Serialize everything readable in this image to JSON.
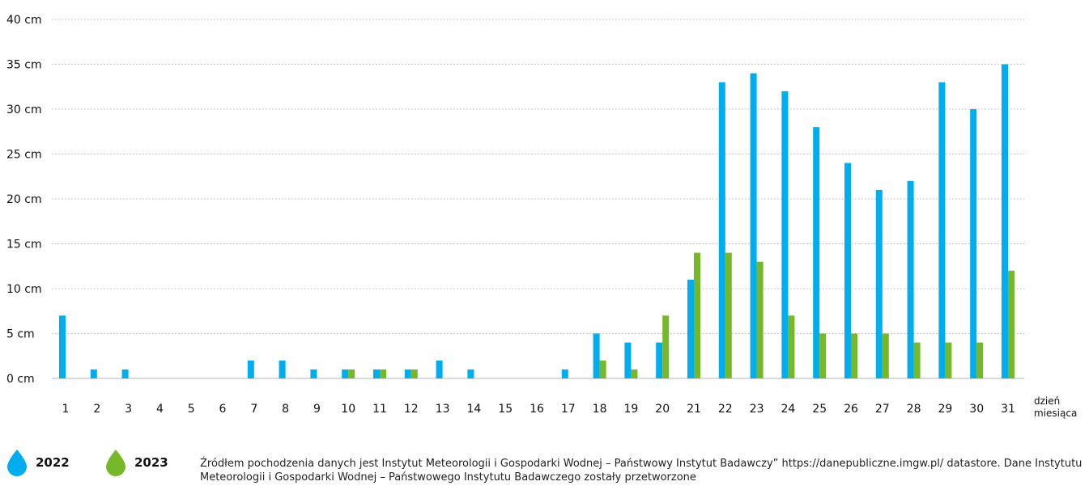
{
  "chart_data": {
    "type": "bar",
    "categories": [
      "1",
      "2",
      "3",
      "4",
      "5",
      "6",
      "7",
      "8",
      "9",
      "10",
      "11",
      "12",
      "13",
      "14",
      "15",
      "16",
      "17",
      "18",
      "19",
      "20",
      "21",
      "22",
      "23",
      "24",
      "25",
      "26",
      "27",
      "28",
      "29",
      "30",
      "31"
    ],
    "series": [
      {
        "name": "2022",
        "color": "#00aeef",
        "values": [
          7,
          1,
          1,
          0,
          0,
          0,
          2,
          2,
          1,
          1,
          1,
          1,
          2,
          1,
          0,
          0,
          1,
          5,
          4,
          4,
          11,
          33,
          34,
          32,
          28,
          24,
          21,
          22,
          33,
          30,
          35
        ]
      },
      {
        "name": "2023",
        "color": "#76b82a",
        "values": [
          0,
          0,
          0,
          0,
          0,
          0,
          0,
          0,
          0,
          1,
          1,
          1,
          0,
          0,
          0,
          0,
          0,
          2,
          1,
          7,
          14,
          14,
          13,
          7,
          5,
          5,
          5,
          4,
          4,
          4,
          12
        ]
      }
    ],
    "yticks": [
      "0 cm",
      "5 cm",
      "10 cm",
      "15 cm",
      "20 cm",
      "25 cm",
      "30 cm",
      "35 cm",
      "40 cm"
    ],
    "ylim": [
      0,
      40
    ],
    "xlabel": "dzień miesiąca",
    "xlabel_lines": [
      "dzień",
      "miesiąca"
    ],
    "grid": true,
    "legend_position": "bottom-left"
  },
  "legend": [
    {
      "label": "2022",
      "color": "#00aeef",
      "icon": "water-drop-icon"
    },
    {
      "label": "2023",
      "color": "#76b82a",
      "icon": "water-drop-icon"
    }
  ],
  "source_note": "Źródłem pochodzenia danych jest Instytut Meteorologii i Gospodarki Wodnej – Państwowy Instytut Badawczy” https://danepubliczne.imgw.pl/ datastore. Dane Instytutu Meteorologii i Gospodarki Wodnej – Państwowego Instytutu Badawczego zostały przetworzone"
}
